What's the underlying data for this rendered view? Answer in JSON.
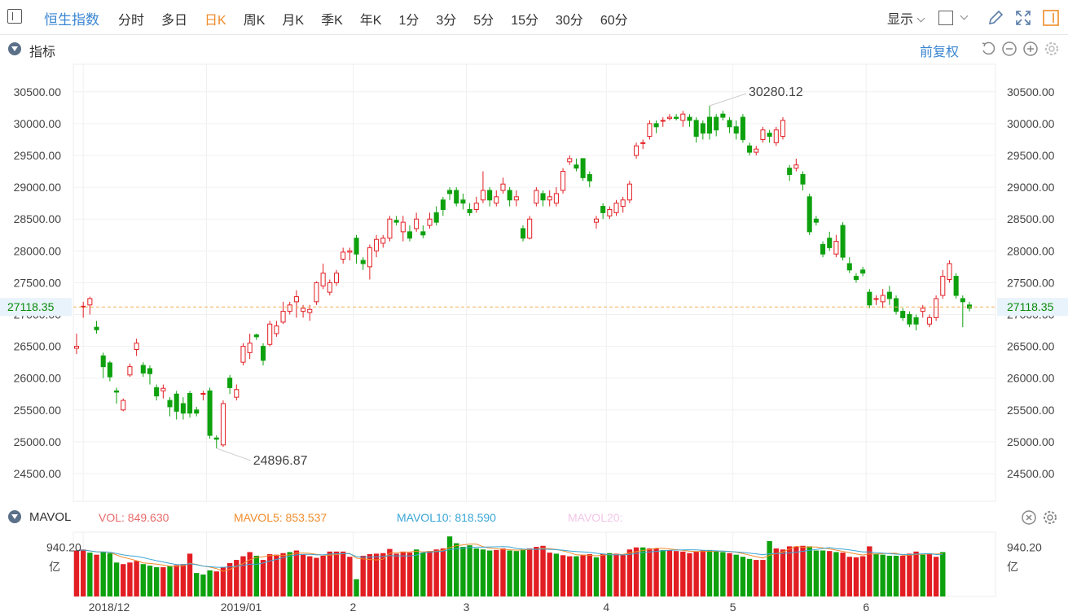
{
  "toolbar": {
    "title": "恒生指数",
    "tabs": [
      "分时",
      "多日",
      "日K",
      "周K",
      "月K",
      "季K",
      "年K",
      "1分",
      "3分",
      "5分",
      "15分",
      "30分",
      "60分"
    ],
    "active_tab": "日K",
    "display_label": "显示"
  },
  "indicator": {
    "label": "指标",
    "adjust": "前复权"
  },
  "volume_panel": {
    "title": "MAVOL",
    "vol": "VOL: 849.630",
    "mavol5": "MAVOL5: 853.537",
    "mavol10": "MAVOL10: 818.590",
    "mavol20": "MAVOL20:",
    "axis_value": "940.20",
    "axis_unit": "亿"
  },
  "colors": {
    "up": "#e21e23",
    "down": "#0ea10e",
    "ma5": "#f08c2b",
    "ma10": "#3aa6d6",
    "ma20": "#e89fd0",
    "accent": "#3a86d1"
  },
  "chart_data": {
    "type": "candlestick",
    "y_ticks": [
      "30500.00",
      "30000.00",
      "29500.00",
      "29000.00",
      "28500.00",
      "28000.00",
      "27500.00",
      "27000.00",
      "26500.00",
      "26000.00",
      "25500.00",
      "25000.00",
      "24500.00"
    ],
    "ylim": [
      24300,
      30700
    ],
    "x_tick_labels": [
      "2018/12",
      "2019/01",
      "2",
      "3",
      "4",
      "5",
      "6"
    ],
    "x_tick_index": [
      1,
      20,
      42,
      59,
      80,
      99,
      119
    ],
    "current_price": "27118.35",
    "max_label": "30280.12",
    "min_label": "24896.87",
    "candles": [
      [
        26470,
        26500,
        26380,
        26700
      ],
      [
        27130,
        27130,
        26950,
        27200
      ],
      [
        27150,
        27250,
        27000,
        27280
      ],
      [
        26800,
        26760,
        26700,
        26900
      ],
      [
        26350,
        26180,
        26000,
        26400
      ],
      [
        26240,
        26020,
        25950,
        26270
      ],
      [
        25800,
        25780,
        25600,
        25850
      ],
      [
        25500,
        25650,
        25480,
        25680
      ],
      [
        26050,
        26180,
        26020,
        26230
      ],
      [
        26450,
        26550,
        26350,
        26620
      ],
      [
        26200,
        26080,
        26020,
        26250
      ],
      [
        26150,
        26070,
        25900,
        26200
      ],
      [
        25850,
        25720,
        25650,
        25900
      ],
      [
        25800,
        25840,
        25680,
        25900
      ],
      [
        25650,
        25550,
        25400,
        25700
      ],
      [
        25750,
        25480,
        25350,
        25800
      ],
      [
        25600,
        25450,
        25350,
        25700
      ],
      [
        25760,
        25450,
        25380,
        25800
      ],
      [
        25500,
        25450,
        25400,
        25550
      ],
      [
        25750,
        25760,
        25650,
        25800
      ],
      [
        25800,
        25100,
        25050,
        25850
      ],
      [
        25060,
        25040,
        24897,
        25100
      ],
      [
        24950,
        25600,
        24920,
        25650
      ],
      [
        26000,
        25850,
        25750,
        26050
      ],
      [
        25700,
        25820,
        25650,
        25900
      ],
      [
        26250,
        26500,
        26200,
        26550
      ],
      [
        26400,
        26550,
        26300,
        26700
      ],
      [
        26680,
        26650,
        26600,
        26700
      ],
      [
        26500,
        26280,
        26200,
        26550
      ],
      [
        26530,
        26850,
        26500,
        26900
      ],
      [
        26700,
        26820,
        26650,
        26900
      ],
      [
        26880,
        27050,
        26850,
        27200
      ],
      [
        27050,
        27150,
        27000,
        27200
      ],
      [
        27200,
        27280,
        26950,
        27380
      ],
      [
        27050,
        27100,
        26950,
        27150
      ],
      [
        27030,
        27080,
        26900,
        27150
      ],
      [
        27200,
        27500,
        27150,
        27520
      ],
      [
        27450,
        27650,
        27400,
        27800
      ],
      [
        27350,
        27500,
        27300,
        27550
      ],
      [
        27500,
        27650,
        27450,
        27700
      ],
      [
        27870,
        27980,
        27800,
        28050
      ],
      [
        27980,
        28000,
        27850,
        28050
      ],
      [
        28200,
        27950,
        27800,
        28250
      ],
      [
        27850,
        27800,
        27700,
        27900
      ],
      [
        27750,
        28050,
        27550,
        28100
      ],
      [
        28000,
        28180,
        27900,
        28250
      ],
      [
        28120,
        28200,
        28050,
        28250
      ],
      [
        28200,
        28500,
        28150,
        28550
      ],
      [
        28480,
        28450,
        28400,
        28550
      ],
      [
        28300,
        28450,
        28150,
        28550
      ],
      [
        28300,
        28200,
        28150,
        28400
      ],
      [
        28350,
        28500,
        28300,
        28600
      ],
      [
        28300,
        28250,
        28200,
        28400
      ],
      [
        28400,
        28500,
        28350,
        28600
      ],
      [
        28600,
        28450,
        28400,
        28700
      ],
      [
        28800,
        28650,
        28550,
        28850
      ],
      [
        28950,
        28900,
        28800,
        29000
      ],
      [
        28950,
        28750,
        28700,
        29000
      ],
      [
        28800,
        28750,
        28650,
        28900
      ],
      [
        28650,
        28600,
        28550,
        28750
      ],
      [
        28650,
        28750,
        28600,
        28850
      ],
      [
        28800,
        28950,
        28750,
        29250
      ],
      [
        28950,
        28800,
        28700,
        29000
      ],
      [
        28750,
        28850,
        28700,
        28950
      ],
      [
        28950,
        29050,
        28900,
        29150
      ],
      [
        28950,
        28800,
        28700,
        29000
      ],
      [
        28800,
        28850,
        28700,
        28950
      ],
      [
        28350,
        28200,
        28150,
        28400
      ],
      [
        28200,
        28500,
        28180,
        28550
      ],
      [
        28750,
        28950,
        28700,
        29000
      ],
      [
        28900,
        28800,
        28700,
        28950
      ],
      [
        28800,
        28850,
        28700,
        28950
      ],
      [
        28750,
        28900,
        28700,
        29000
      ],
      [
        28950,
        29250,
        28900,
        29300
      ],
      [
        29400,
        29450,
        29350,
        29500
      ],
      [
        29350,
        29300,
        29250,
        29450
      ],
      [
        29450,
        29150,
        29100,
        29450
      ],
      [
        29200,
        29100,
        29000,
        29250
      ],
      [
        28450,
        28500,
        28350,
        28550
      ],
      [
        28700,
        28600,
        28500,
        28750
      ],
      [
        28550,
        28650,
        28500,
        28700
      ],
      [
        28600,
        28750,
        28550,
        28800
      ],
      [
        28700,
        28800,
        28600,
        28850
      ],
      [
        28800,
        29050,
        28750,
        29100
      ],
      [
        29500,
        29650,
        29450,
        29700
      ],
      [
        29700,
        29700,
        29600,
        29750
      ],
      [
        29800,
        30000,
        29750,
        30050
      ],
      [
        30000,
        29950,
        29850,
        30050
      ],
      [
        30050,
        30050,
        29950,
        30100
      ],
      [
        30080,
        30100,
        30050,
        30150
      ],
      [
        30100,
        30080,
        30050,
        30150
      ],
      [
        30050,
        30150,
        29950,
        30200
      ],
      [
        30100,
        30050,
        29950,
        30150
      ],
      [
        30050,
        29800,
        29700,
        30100
      ],
      [
        30000,
        29850,
        29750,
        30050
      ],
      [
        30100,
        29850,
        29750,
        30280
      ],
      [
        30100,
        29900,
        29800,
        30150
      ],
      [
        30150,
        30100,
        30050,
        30200
      ],
      [
        30050,
        29950,
        29850,
        30100
      ],
      [
        29950,
        29850,
        29750,
        30050
      ],
      [
        30100,
        29750,
        29700,
        30150
      ],
      [
        29650,
        29550,
        29500,
        29700
      ],
      [
        29550,
        29600,
        29500,
        29650
      ],
      [
        29750,
        29900,
        29700,
        29950
      ],
      [
        29850,
        29800,
        29700,
        29900
      ],
      [
        29700,
        29900,
        29650,
        29950
      ],
      [
        29800,
        30050,
        29750,
        30100
      ],
      [
        29300,
        29200,
        29100,
        29350
      ],
      [
        29300,
        29350,
        29250,
        29450
      ],
      [
        29200,
        29050,
        28950,
        29250
      ],
      [
        28850,
        28300,
        28250,
        28900
      ],
      [
        28500,
        28450,
        28400,
        28550
      ],
      [
        28100,
        27950,
        27900,
        28150
      ],
      [
        28200,
        28050,
        28000,
        28300
      ],
      [
        27950,
        28150,
        27900,
        28250
      ],
      [
        28400,
        27900,
        27850,
        28450
      ],
      [
        27800,
        27700,
        27650,
        27900
      ],
      [
        27600,
        27550,
        27500,
        27650
      ],
      [
        27700,
        27650,
        27600,
        27750
      ],
      [
        27350,
        27150,
        27100,
        27400
      ],
      [
        27250,
        27250,
        27150,
        27300
      ],
      [
        27200,
        27300,
        27100,
        27400
      ],
      [
        27350,
        27250,
        27150,
        27450
      ],
      [
        27250,
        27050,
        27000,
        27300
      ],
      [
        27050,
        26950,
        26900,
        27100
      ],
      [
        27000,
        26850,
        26800,
        27050
      ],
      [
        26950,
        26850,
        26750,
        27000
      ],
      [
        27050,
        27100,
        26950,
        27150
      ],
      [
        26850,
        26950,
        26800,
        27000
      ],
      [
        26950,
        27250,
        26900,
        27300
      ],
      [
        27300,
        27600,
        27250,
        27700
      ],
      [
        27550,
        27800,
        27500,
        27850
      ],
      [
        27600,
        27300,
        27250,
        27650
      ],
      [
        27250,
        27200,
        26800,
        27300
      ],
      [
        27150,
        27100,
        27050,
        27200
      ]
    ],
    "volumes": [
      [
        880,
        1
      ],
      [
        900,
        1
      ],
      [
        840,
        0
      ],
      [
        800,
        1
      ],
      [
        850,
        0
      ],
      [
        830,
        0
      ],
      [
        650,
        0
      ],
      [
        620,
        1
      ],
      [
        650,
        1
      ],
      [
        680,
        1
      ],
      [
        620,
        0
      ],
      [
        590,
        0
      ],
      [
        560,
        0
      ],
      [
        560,
        1
      ],
      [
        580,
        0
      ],
      [
        600,
        1
      ],
      [
        620,
        1
      ],
      [
        820,
        1
      ],
      [
        450,
        0
      ],
      [
        420,
        0
      ],
      [
        500,
        0
      ],
      [
        480,
        1
      ],
      [
        560,
        1
      ],
      [
        640,
        1
      ],
      [
        700,
        1
      ],
      [
        770,
        1
      ],
      [
        850,
        1
      ],
      [
        780,
        0
      ],
      [
        700,
        1
      ],
      [
        810,
        1
      ],
      [
        800,
        1
      ],
      [
        830,
        1
      ],
      [
        850,
        0
      ],
      [
        880,
        1
      ],
      [
        800,
        1
      ],
      [
        770,
        1
      ],
      [
        740,
        1
      ],
      [
        780,
        1
      ],
      [
        860,
        1
      ],
      [
        860,
        1
      ],
      [
        860,
        1
      ],
      [
        760,
        1
      ],
      [
        330,
        0
      ],
      [
        780,
        1
      ],
      [
        810,
        1
      ],
      [
        820,
        1
      ],
      [
        830,
        1
      ],
      [
        910,
        1
      ],
      [
        820,
        1
      ],
      [
        860,
        1
      ],
      [
        840,
        1
      ],
      [
        900,
        0
      ],
      [
        840,
        0
      ],
      [
        870,
        1
      ],
      [
        900,
        1
      ],
      [
        920,
        1
      ],
      [
        1150,
        0
      ],
      [
        1020,
        0
      ],
      [
        950,
        0
      ],
      [
        980,
        0
      ],
      [
        920,
        0
      ],
      [
        900,
        0
      ],
      [
        880,
        0
      ],
      [
        890,
        1
      ],
      [
        920,
        1
      ],
      [
        880,
        0
      ],
      [
        870,
        0
      ],
      [
        900,
        0
      ],
      [
        920,
        1
      ],
      [
        950,
        1
      ],
      [
        970,
        1
      ],
      [
        840,
        1
      ],
      [
        820,
        0
      ],
      [
        790,
        1
      ],
      [
        770,
        1
      ],
      [
        770,
        0
      ],
      [
        800,
        1
      ],
      [
        810,
        1
      ],
      [
        750,
        0
      ],
      [
        820,
        1
      ],
      [
        830,
        0
      ],
      [
        820,
        1
      ],
      [
        800,
        1
      ],
      [
        900,
        1
      ],
      [
        940,
        1
      ],
      [
        940,
        0
      ],
      [
        920,
        1
      ],
      [
        920,
        1
      ],
      [
        890,
        0
      ],
      [
        880,
        1
      ],
      [
        870,
        1
      ],
      [
        860,
        1
      ],
      [
        830,
        1
      ],
      [
        860,
        1
      ],
      [
        880,
        1
      ],
      [
        890,
        0
      ],
      [
        870,
        0
      ],
      [
        850,
        0
      ],
      [
        830,
        1
      ],
      [
        800,
        0
      ],
      [
        760,
        0
      ],
      [
        720,
        0
      ],
      [
        700,
        1
      ],
      [
        700,
        1
      ],
      [
        1060,
        0
      ],
      [
        920,
        1
      ],
      [
        900,
        1
      ],
      [
        960,
        1
      ],
      [
        960,
        1
      ],
      [
        970,
        1
      ],
      [
        960,
        0
      ],
      [
        880,
        0
      ],
      [
        880,
        0
      ],
      [
        870,
        1
      ],
      [
        850,
        0
      ],
      [
        840,
        1
      ],
      [
        760,
        1
      ],
      [
        750,
        1
      ],
      [
        770,
        1
      ],
      [
        960,
        1
      ],
      [
        820,
        0
      ],
      [
        800,
        0
      ],
      [
        780,
        0
      ],
      [
        780,
        0
      ],
      [
        780,
        1
      ],
      [
        820,
        1
      ],
      [
        860,
        1
      ],
      [
        800,
        0
      ],
      [
        820,
        1
      ],
      [
        760,
        1
      ],
      [
        850,
        0
      ]
    ]
  }
}
